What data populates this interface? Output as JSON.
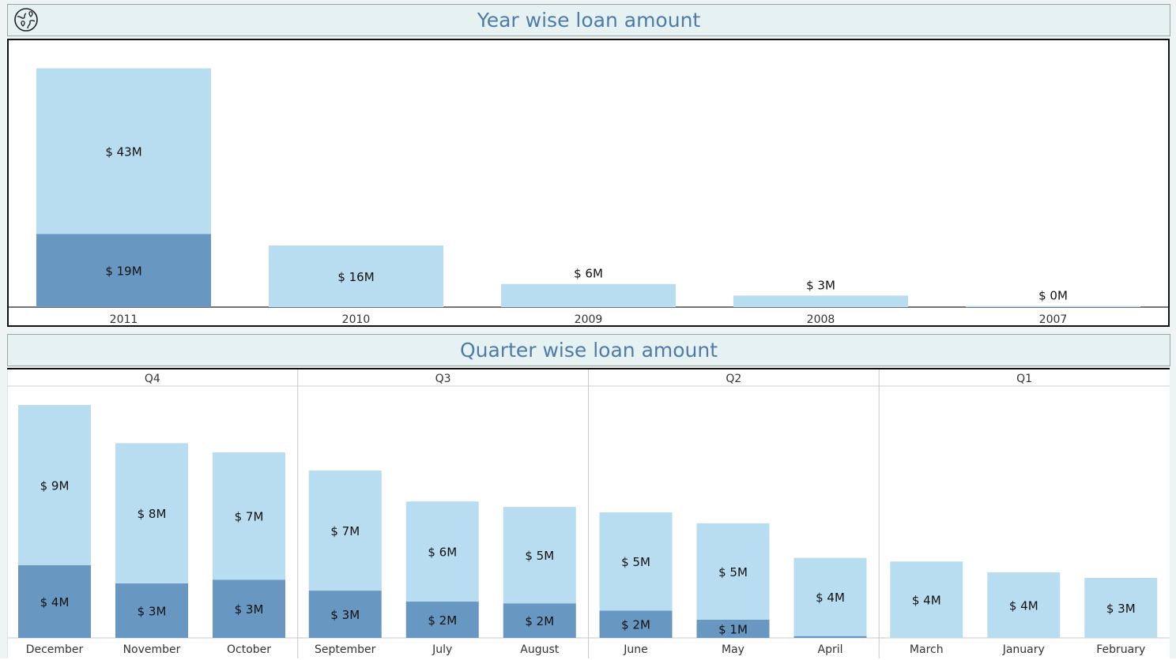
{
  "titles": {
    "year": "Year wise loan amount",
    "quarter": "Quarter wise loan amount"
  },
  "icon": "globe-pin-icon",
  "colors": {
    "light": "#b9ddf0",
    "dark": "#6897c2",
    "title": "#4f7bab"
  },
  "chart_data": [
    {
      "type": "bar",
      "stacked": true,
      "title": "Year wise loan amount",
      "categories": [
        "2011",
        "2010",
        "2009",
        "2008",
        "2007"
      ],
      "series": [
        {
          "values": [
            19,
            null,
            null,
            null,
            null
          ],
          "labels": [
            "$ 19M",
            "",
            "",
            "",
            ""
          ],
          "color": "#6897c2"
        },
        {
          "values": [
            43,
            16,
            6,
            3,
            0.3
          ],
          "labels": [
            "$ 43M",
            "$ 16M",
            "$ 6M",
            "$ 3M",
            "$ 0M"
          ],
          "color": "#b9ddf0"
        }
      ],
      "ylim": [
        0,
        66
      ],
      "grid": false
    },
    {
      "type": "bar",
      "stacked": true,
      "title": "Quarter wise loan amount",
      "groups": [
        {
          "name": "Q4",
          "categories": [
            "December",
            "November",
            "October"
          ]
        },
        {
          "name": "Q3",
          "categories": [
            "September",
            "July",
            "August"
          ]
        },
        {
          "name": "Q2",
          "categories": [
            "June",
            "May",
            "April"
          ]
        },
        {
          "name": "Q1",
          "categories": [
            "March",
            "January",
            "February"
          ]
        }
      ],
      "categories": [
        "December",
        "November",
        "October",
        "September",
        "July",
        "August",
        "June",
        "May",
        "April",
        "March",
        "January",
        "February"
      ],
      "series": [
        {
          "values": [
            4,
            3,
            3.2,
            2.6,
            2,
            1.9,
            1.5,
            1.0,
            0.1,
            null,
            null,
            null
          ],
          "labels": [
            "$ 4M",
            "$ 3M",
            "$ 3M",
            "$ 3M",
            "$ 2M",
            "$ 2M",
            "$ 2M",
            "$ 1M",
            "",
            "",
            "",
            ""
          ],
          "color": "#6897c2"
        },
        {
          "values": [
            8.8,
            7.7,
            7.0,
            6.6,
            5.5,
            5.3,
            5.4,
            5.3,
            4.3,
            4.2,
            3.6,
            3.3
          ],
          "labels": [
            "$ 9M",
            "$ 8M",
            "$ 7M",
            "$ 7M",
            "$ 6M",
            "$ 5M",
            "$ 5M",
            "$ 5M",
            "$ 4M",
            "$ 4M",
            "$ 4M",
            "$ 3M"
          ],
          "color": "#b9ddf0"
        }
      ],
      "ylim": [
        0,
        13.8
      ],
      "grid": false
    }
  ]
}
